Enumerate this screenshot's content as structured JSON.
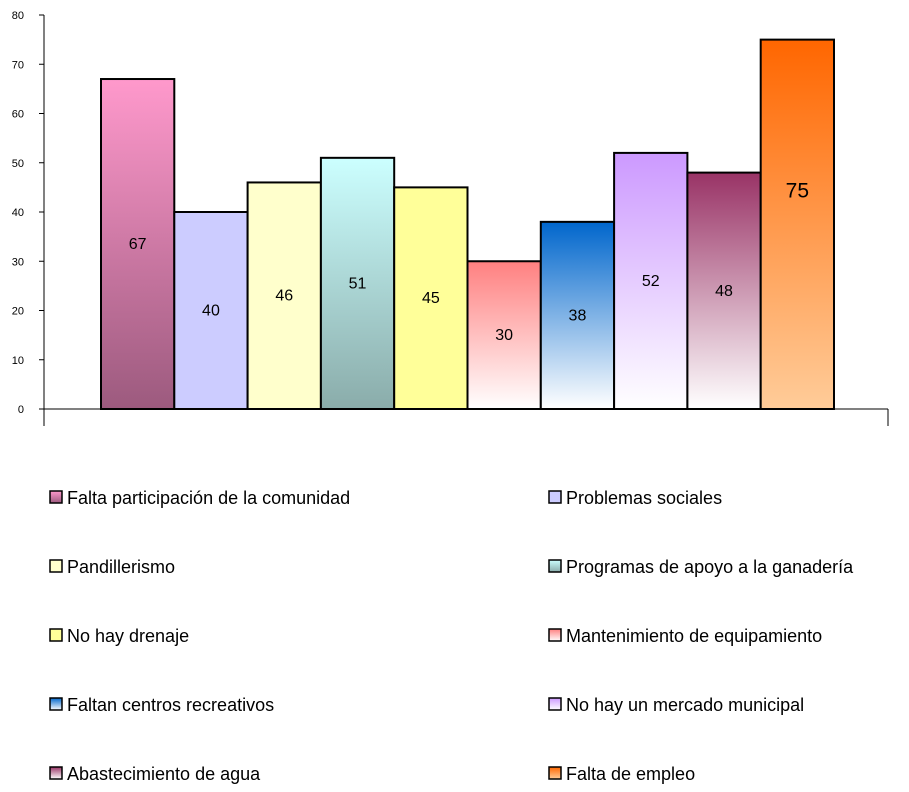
{
  "chart_data": {
    "type": "bar",
    "title": "",
    "xlabel": "",
    "ylabel": "",
    "ylim": [
      0,
      80
    ],
    "yticks": [
      0,
      10,
      20,
      30,
      40,
      50,
      60,
      70,
      80
    ],
    "grid": false,
    "legend_position": "bottom",
    "series": [
      {
        "name": "Falta participación de la comunidad",
        "value": 67,
        "label": "67",
        "color_top": "#ff99cc",
        "color_bottom": "#9c5a7e"
      },
      {
        "name": "Problemas sociales",
        "value": 40,
        "label": "40",
        "color_top": "#ccccff",
        "color_bottom": "#ccccff"
      },
      {
        "name": "Pandillerismo",
        "value": 46,
        "label": "46",
        "color_top": "#ffffcc",
        "color_bottom": "#ffffcc"
      },
      {
        "name": "Programas de apoyo a la ganadería",
        "value": 51,
        "label": "51",
        "color_top": "#ccffff",
        "color_bottom": "#8aacaa"
      },
      {
        "name": "No hay drenaje",
        "value": 45,
        "label": "45",
        "color_top": "#ffff99",
        "color_bottom": "#ffff99"
      },
      {
        "name": "Mantenimiento de equipamiento",
        "value": 30,
        "label": "30",
        "color_top": "#ff8080",
        "color_bottom": "#ffffff"
      },
      {
        "name": "Faltan centros recreativos",
        "value": 38,
        "label": "38",
        "color_top": "#0066cc",
        "color_bottom": "#ffffff"
      },
      {
        "name": "No hay un mercado municipal",
        "value": 52,
        "label": "52",
        "color_top": "#cc99ff",
        "color_bottom": "#ffffff"
      },
      {
        "name": "Abastecimiento de agua",
        "value": 48,
        "label": "48",
        "color_top": "#993366",
        "color_bottom": "#ffffff"
      },
      {
        "name": "Falta de empleo",
        "value": 75,
        "label": "75",
        "color_top": "#ff6600",
        "color_bottom": "#ffcc99"
      }
    ]
  }
}
